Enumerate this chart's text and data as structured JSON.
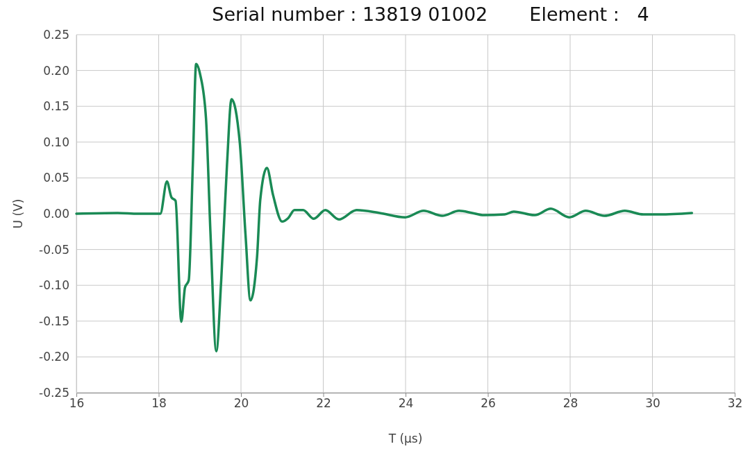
{
  "chart_data": {
    "type": "line",
    "title": "Serial number : 13819 01002       Element :   4",
    "xlabel": "T (µs)",
    "ylabel": "U (V)",
    "xlim": [
      16,
      32
    ],
    "xticks": [
      16,
      18,
      20,
      22,
      24,
      26,
      28,
      30,
      32
    ],
    "ylim": [
      -0.25,
      0.25
    ],
    "yticks": [
      -0.25,
      {
        "value": -0.2,
        "label": "-0.20"
      },
      -0.15,
      {
        "value": -0.1,
        "label": "-0.10"
      },
      -0.05,
      {
        "value": 0,
        "label": "0.00"
      },
      0.05,
      {
        "value": 0.1,
        "label": "0.10"
      },
      0.15,
      {
        "value": 0.2,
        "label": "0.20"
      },
      0.25
    ],
    "grid": true,
    "marker": "none",
    "line_style": "solid",
    "series": [
      {
        "color": "#1a8a55",
        "x": [
          16,
          17,
          17.5,
          18.04,
          18.2,
          18.31,
          18.41,
          18.55,
          18.64,
          18.73,
          18.83,
          18.91,
          19.01,
          19.15,
          19.26,
          19.4,
          19.52,
          19.66,
          19.77,
          19.97,
          20.11,
          20.23,
          20.39,
          20.47,
          20.63,
          20.78,
          21.0,
          21.15,
          21.3,
          21.51,
          21.77,
          22.05,
          22.38,
          22.81,
          23.37,
          23.99,
          24.44,
          24.89,
          25.3,
          25.62,
          25.9,
          26.41,
          26.63,
          27.14,
          27.53,
          27.98,
          28.38,
          28.83,
          29.33,
          29.78,
          30.18,
          30.96
        ],
        "values": [
          0,
          0.001,
          0,
          0,
          0.045,
          0.023,
          0.018,
          -0.151,
          -0.103,
          -0.093,
          0.068,
          0.209,
          0.194,
          0.133,
          -0.029,
          -0.192,
          -0.093,
          0.068,
          0.16,
          0.1,
          -0.029,
          -0.121,
          -0.061,
          0.02,
          0.064,
          0.026,
          -0.011,
          -0.006,
          0.005,
          0.005,
          -0.007,
          0.005,
          -0.008,
          0.005,
          0.001,
          -0.005,
          0.004,
          -0.003,
          0.004,
          0.001,
          -0.002,
          -0.001,
          0.003,
          -0.002,
          0.007,
          -0.005,
          0.004,
          -0.003,
          0.004,
          -0.001,
          -0.001,
          0.001
        ]
      }
    ]
  }
}
